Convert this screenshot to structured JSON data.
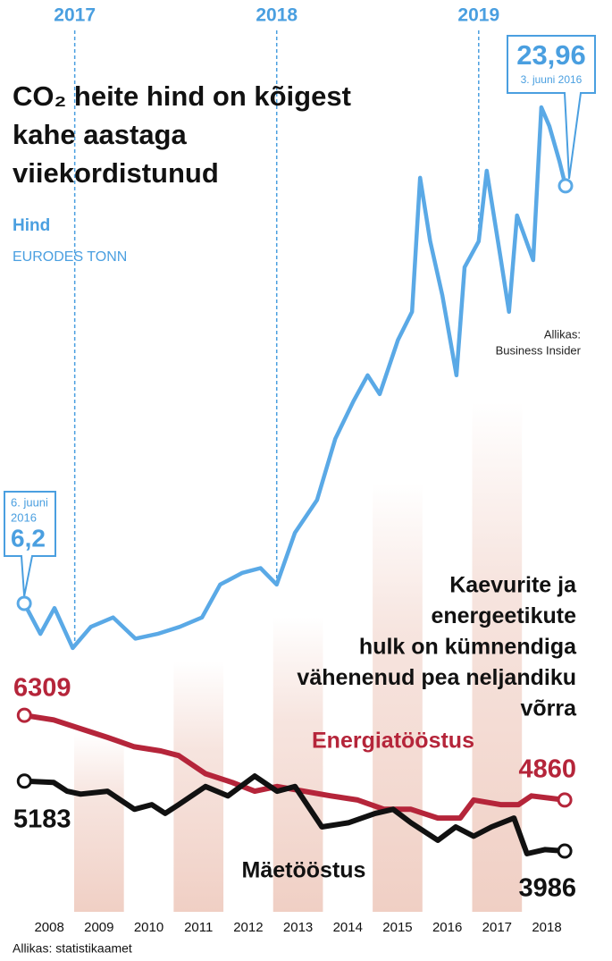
{
  "charts": [
    {
      "type": "line",
      "title_lines": [
        "CO₂ heite hind on kõigest",
        "kahe aastaga",
        "viiekordistunud"
      ],
      "subtitle": "Hind",
      "unit": "EURODES TONN",
      "source_lines": [
        "Allikas:",
        "Business Insider"
      ],
      "start_note": [
        "6. juuni",
        "2016"
      ],
      "end_note": "3. juuni 2016",
      "xlim": [
        2016.63,
        2019.66
      ],
      "xticks": [
        2017,
        2018,
        2019
      ],
      "ylim": [
        0,
        30
      ],
      "series": [
        {
          "name": "Hind",
          "color": "#5aa9e6",
          "x": [
            2016.75,
            2016.83,
            2016.9,
            2016.99,
            2017.08,
            2017.19,
            2017.3,
            2017.41,
            2017.52,
            2017.63,
            2017.72,
            2017.83,
            2017.92,
            2018.0,
            2018.09,
            2018.2,
            2018.29,
            2018.38,
            2018.45,
            2018.51,
            2018.6,
            2018.67,
            2018.71,
            2018.76,
            2018.82,
            2018.89,
            2018.93,
            2019.0,
            2019.04,
            2019.11,
            2019.15,
            2019.19,
            2019.27,
            2019.31,
            2019.35,
            2019.4,
            2019.43
          ],
          "values": [
            6.2,
            4.9,
            6.0,
            4.3,
            5.2,
            5.6,
            4.7,
            4.9,
            5.2,
            5.6,
            7.0,
            7.5,
            7.7,
            7.0,
            9.2,
            10.6,
            13.2,
            14.8,
            15.9,
            15.1,
            17.4,
            18.6,
            24.3,
            21.6,
            19.3,
            15.9,
            20.5,
            21.6,
            24.6,
            20.8,
            18.6,
            22.7,
            20.8,
            27.3,
            26.5,
            25.0,
            23.96
          ],
          "value_labels": [
            "6,2",
            null,
            null,
            null,
            null,
            null,
            null,
            null,
            null,
            null,
            null,
            null,
            null,
            null,
            null,
            null,
            null,
            null,
            null,
            null,
            null,
            null,
            null,
            null,
            null,
            null,
            null,
            null,
            null,
            null,
            null,
            null,
            null,
            null,
            null,
            null,
            "23,96"
          ]
        }
      ]
    },
    {
      "type": "line",
      "title_lines": [
        "Kaevurite ja",
        "energeetikute",
        "hulk on kümnendiga",
        "vähenenud pea neljandiku",
        "võrra"
      ],
      "source": "Allikas: statistikaamet",
      "xlim": [
        2007.01,
        2019.31
      ],
      "xticks": [
        2008,
        2009,
        2010,
        2011,
        2012,
        2013,
        2014,
        2015,
        2016,
        2017,
        2018
      ],
      "ylim": [
        2900,
        7000
      ],
      "series": [
        {
          "name": "Energiatööstus",
          "color": "#b5253a",
          "x": [
            2007.5,
            2008.09,
            2008.63,
            2009.17,
            2009.71,
            2010.24,
            2010.6,
            2011.14,
            2011.68,
            2012.13,
            2012.58,
            2013.12,
            2013.66,
            2014.2,
            2014.73,
            2015.27,
            2015.81,
            2016.26,
            2016.53,
            2017.07,
            2017.43,
            2017.69,
            2018.36
          ],
          "values": [
            6309,
            6230,
            6080,
            5930,
            5770,
            5700,
            5620,
            5310,
            5160,
            5010,
            5090,
            5010,
            4930,
            4860,
            4700,
            4700,
            4550,
            4550,
            4860,
            4780,
            4780,
            4930,
            4860
          ]
        },
        {
          "name": "Mäetööstus",
          "color": "#111111",
          "x": [
            2007.5,
            2008.09,
            2008.36,
            2008.63,
            2009.17,
            2009.71,
            2010.06,
            2010.33,
            2010.6,
            2011.14,
            2011.59,
            2012.13,
            2012.58,
            2012.94,
            2013.48,
            2014.01,
            2014.55,
            2014.91,
            2015.27,
            2015.81,
            2016.17,
            2016.53,
            2016.89,
            2017.34,
            2017.6,
            2017.96,
            2018.36
          ],
          "values": [
            5183,
            5160,
            5010,
            4960,
            5010,
            4700,
            4780,
            4630,
            4780,
            5090,
            4930,
            5270,
            5010,
            5090,
            4400,
            4470,
            4630,
            4700,
            4470,
            4170,
            4400,
            4240,
            4400,
            4550,
            3940,
            4010,
            3986
          ]
        }
      ]
    }
  ]
}
